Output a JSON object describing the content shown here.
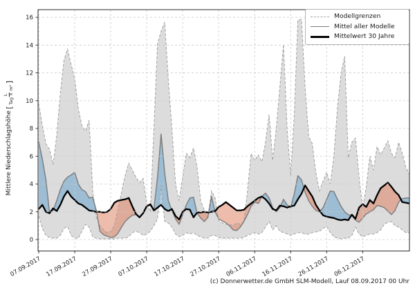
{
  "chart_data": {
    "type": "area",
    "title": "",
    "ylabel": {
      "text": "Mittlere Niederschlagshöhe",
      "unit_numerator": "L",
      "unit_denominator": "Tag × m²"
    },
    "start_date": "07.09.2017",
    "x_tick_labels": [
      "07.09.2017",
      "17.09.2017",
      "27.09.2017",
      "07.10.2017",
      "17.10.2017",
      "27.10.2017",
      "06.11.2017",
      "16.11.2017",
      "26.11.2017",
      "06.12.2017"
    ],
    "x_tick_days": [
      0,
      10,
      20,
      30,
      40,
      50,
      60,
      70,
      80,
      90
    ],
    "yticks": [
      0,
      2,
      4,
      6,
      8,
      10,
      12,
      14,
      16
    ],
    "ylim": [
      -0.82,
      16.55
    ],
    "xlim_days": [
      0,
      103
    ],
    "grid": true,
    "legend_position": "upper right",
    "series": [
      {
        "name": "Modellgrenze oben",
        "role": "upper",
        "values": [
          9.8,
          8.2,
          6.9,
          6.5,
          5.4,
          7.5,
          10.5,
          12.9,
          13.7,
          12.6,
          11.6,
          9.4,
          8.2,
          7.8,
          8.6,
          3.5,
          1.6,
          1.0,
          0.7,
          0.5,
          0.6,
          1.0,
          2.2,
          3.4,
          4.6,
          5.5,
          5.0,
          4.5,
          4.1,
          4.4,
          2.6,
          2.0,
          8.0,
          14.1,
          15.0,
          15.65,
          11.5,
          8.0,
          4.0,
          2.8,
          4.5,
          6.2,
          5.9,
          6.6,
          5.2,
          2.8,
          2.1,
          1.6,
          3.5,
          3.0,
          1.4,
          1.2,
          1.1,
          1.1,
          1.0,
          1.2,
          1.1,
          1.3,
          3.5,
          6.2,
          5.7,
          6.1,
          5.6,
          7.0,
          9.0,
          5.7,
          8.0,
          11.0,
          14.05,
          8.0,
          4.6,
          9.0,
          15.8,
          15.85,
          11.0,
          7.4,
          6.9,
          4.8,
          3.5,
          4.2,
          4.85,
          4.0,
          6.0,
          9.5,
          12.0,
          13.2,
          5.9,
          7.0,
          7.3,
          4.5,
          2.2,
          3.8,
          6.0,
          5.0,
          6.7,
          6.1,
          6.6,
          7.1,
          6.2,
          5.9,
          7.0,
          6.2,
          5.2,
          4.7
        ]
      },
      {
        "name": "Modellgrenze unten",
        "role": "lower",
        "values": [
          1.7,
          0.8,
          0.3,
          0.15,
          0.1,
          0.1,
          0.3,
          0.8,
          0.95,
          0.3,
          0.1,
          0.1,
          0.6,
          1.1,
          0.9,
          0.2,
          0.1,
          0.05,
          0.05,
          0.05,
          0.05,
          0.05,
          0.1,
          0.1,
          0.1,
          0.2,
          0.5,
          0.6,
          0.5,
          0.3,
          0.4,
          0.6,
          1.0,
          1.5,
          3.9,
          1.3,
          1.2,
          0.9,
          0.4,
          0.2,
          0.3,
          0.5,
          0.4,
          0.5,
          0.3,
          0.2,
          0.1,
          0.1,
          0.3,
          0.3,
          0.15,
          0.1,
          0.1,
          0.1,
          0.1,
          0.1,
          0.1,
          0.15,
          0.3,
          0.4,
          0.5,
          0.4,
          0.5,
          0.9,
          1.3,
          0.7,
          1.0,
          0.6,
          0.5,
          0.4,
          0.3,
          0.4,
          0.5,
          0.5,
          0.4,
          0.4,
          0.5,
          0.55,
          0.6,
          0.8,
          0.95,
          0.5,
          0.2,
          0.1,
          0.05,
          0.1,
          0.1,
          0.3,
          0.9,
          0.4,
          0.2,
          0.3,
          0.4,
          0.4,
          0.5,
          0.7,
          1.1,
          1.25,
          1.3,
          1.0,
          0.9,
          0.7,
          0.5,
          0.5
        ]
      },
      {
        "name": "Mittel aller Modelle",
        "role": "mean",
        "values": [
          7.05,
          5.8,
          4.3,
          1.95,
          2.1,
          2.8,
          3.6,
          4.2,
          4.5,
          4.65,
          4.85,
          4.0,
          3.6,
          3.45,
          3.0,
          3.05,
          2.1,
          0.6,
          0.35,
          0.25,
          0.15,
          0.2,
          0.45,
          0.9,
          1.3,
          1.55,
          1.75,
          1.8,
          1.65,
          1.9,
          2.4,
          2.45,
          2.2,
          4.5,
          7.6,
          4.8,
          2.8,
          2.1,
          1.5,
          1.1,
          1.8,
          2.5,
          3.0,
          3.05,
          1.9,
          1.55,
          1.3,
          1.6,
          3.1,
          2.0,
          1.5,
          1.35,
          1.2,
          1.0,
          0.7,
          0.65,
          0.9,
          1.3,
          1.8,
          2.4,
          2.7,
          2.6,
          3.1,
          3.35,
          3.0,
          2.3,
          2.0,
          2.3,
          2.9,
          2.5,
          2.3,
          3.3,
          4.6,
          4.3,
          3.4,
          2.8,
          2.4,
          2.1,
          2.0,
          2.3,
          2.9,
          3.5,
          3.45,
          2.9,
          2.4,
          2.0,
          1.8,
          1.7,
          1.4,
          1.25,
          1.55,
          1.85,
          2.0,
          2.15,
          2.45,
          2.4,
          2.3,
          2.05,
          1.8,
          2.1,
          2.7,
          2.95,
          3.0,
          3.0
        ]
      },
      {
        "name": "Mittelwert 30 Jahre",
        "role": "mean30",
        "values": [
          2.2,
          2.5,
          2.0,
          1.9,
          2.25,
          2.05,
          2.5,
          3.1,
          3.5,
          3.1,
          2.85,
          2.6,
          2.5,
          2.3,
          2.1,
          2.05,
          2.0,
          2.0,
          1.95,
          2.0,
          2.2,
          2.65,
          2.8,
          2.85,
          2.9,
          3.0,
          2.4,
          1.85,
          1.6,
          1.9,
          2.4,
          2.55,
          2.1,
          2.3,
          2.5,
          2.2,
          2.05,
          2.2,
          1.7,
          1.45,
          2.0,
          2.2,
          2.15,
          1.6,
          1.95,
          1.95,
          2.0,
          1.95,
          2.0,
          2.05,
          2.35,
          2.5,
          2.7,
          2.5,
          2.3,
          2.1,
          2.1,
          2.15,
          2.4,
          2.6,
          2.8,
          3.0,
          3.1,
          2.9,
          2.6,
          2.2,
          2.1,
          2.45,
          2.4,
          2.3,
          2.4,
          2.45,
          2.9,
          3.3,
          3.9,
          3.5,
          3.1,
          2.5,
          2.1,
          1.75,
          1.65,
          1.6,
          1.55,
          1.45,
          1.4,
          1.45,
          1.4,
          1.8,
          1.5,
          2.3,
          2.55,
          2.35,
          2.85,
          2.6,
          3.2,
          3.7,
          3.9,
          4.1,
          3.8,
          3.45,
          3.2,
          2.7,
          2.65,
          2.6
        ]
      }
    ],
    "colors": {
      "band_fill": "#dcdcdc",
      "band_edge": "#a0a0a0",
      "above_normal_fill": "#5b9ec9",
      "below_normal_fill": "#e07a58",
      "mean_line": "#7a7a7a",
      "mean30_line": "#000000",
      "grid": "#cccccc",
      "axis": "#262626",
      "tick_text": "#1a1a1a"
    }
  },
  "legend": {
    "items": [
      {
        "label": "Modellgrenzen"
      },
      {
        "label": "Mittel aller Modelle"
      },
      {
        "label": "Mittelwert 30 Jahre"
      }
    ]
  },
  "footer": {
    "credit": "(c) Donnerwetter.de GmbH SLM-Modell, Lauf 08.09.2017 00 Uhr"
  }
}
